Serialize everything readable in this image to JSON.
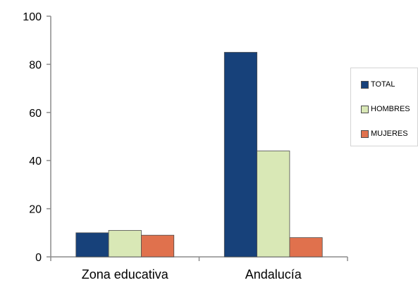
{
  "chart_data": {
    "type": "bar",
    "categories": [
      "Zona educativa",
      "Andalucía"
    ],
    "series": [
      {
        "name": "TOTAL",
        "values": [
          10,
          85
        ],
        "color": "#17417a"
      },
      {
        "name": "HOMBRES",
        "values": [
          11,
          44
        ],
        "color": "#d9e8b6"
      },
      {
        "name": "MUJERES",
        "values": [
          9,
          8
        ],
        "color": "#e0714d"
      }
    ],
    "ylim": [
      0,
      100
    ],
    "yticks": [
      "0",
      "20",
      "40",
      "60",
      "80",
      "100"
    ],
    "title": "",
    "xlabel": "",
    "ylabel": "",
    "grid": false,
    "legend_position": "right"
  }
}
